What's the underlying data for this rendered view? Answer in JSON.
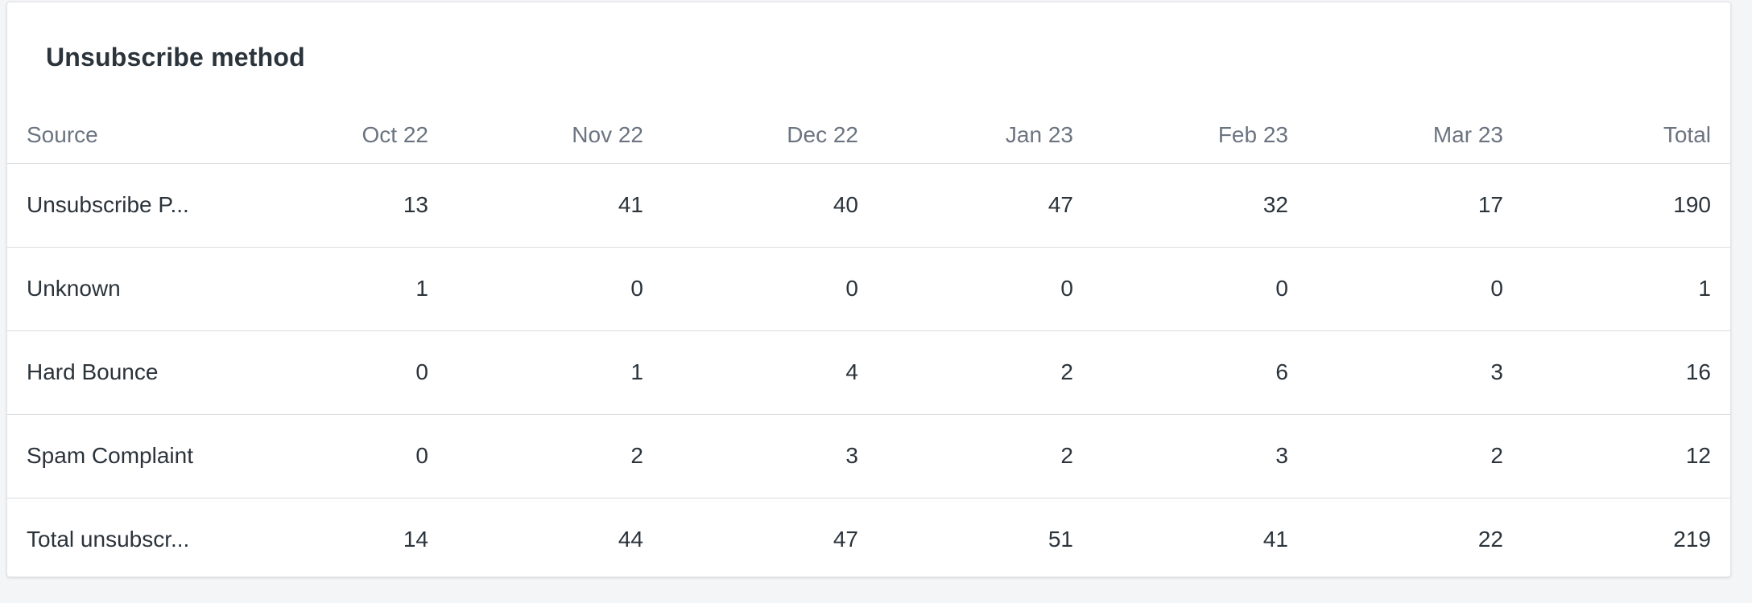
{
  "card": {
    "title": "Unsubscribe method"
  },
  "table": {
    "headers": {
      "source": "Source",
      "m1": "Oct 22",
      "m2": "Nov 22",
      "m3": "Dec 22",
      "m4": "Jan 23",
      "m5": "Feb 23",
      "m6": "Mar 23",
      "total": "Total"
    },
    "rows": [
      {
        "source": "Unsubscribe P...",
        "m1": "13",
        "m2": "41",
        "m3": "40",
        "m4": "47",
        "m5": "32",
        "m6": "17",
        "total": "190"
      },
      {
        "source": "Unknown",
        "m1": "1",
        "m2": "0",
        "m3": "0",
        "m4": "0",
        "m5": "0",
        "m6": "0",
        "total": "1"
      },
      {
        "source": "Hard Bounce",
        "m1": "0",
        "m2": "1",
        "m3": "4",
        "m4": "2",
        "m5": "6",
        "m6": "3",
        "total": "16"
      },
      {
        "source": "Spam Complaint",
        "m1": "0",
        "m2": "2",
        "m3": "3",
        "m4": "2",
        "m5": "3",
        "m6": "2",
        "total": "12"
      },
      {
        "source": "Total unsubscr...",
        "m1": "14",
        "m2": "44",
        "m3": "47",
        "m4": "51",
        "m5": "41",
        "m6": "22",
        "total": "219"
      }
    ]
  }
}
